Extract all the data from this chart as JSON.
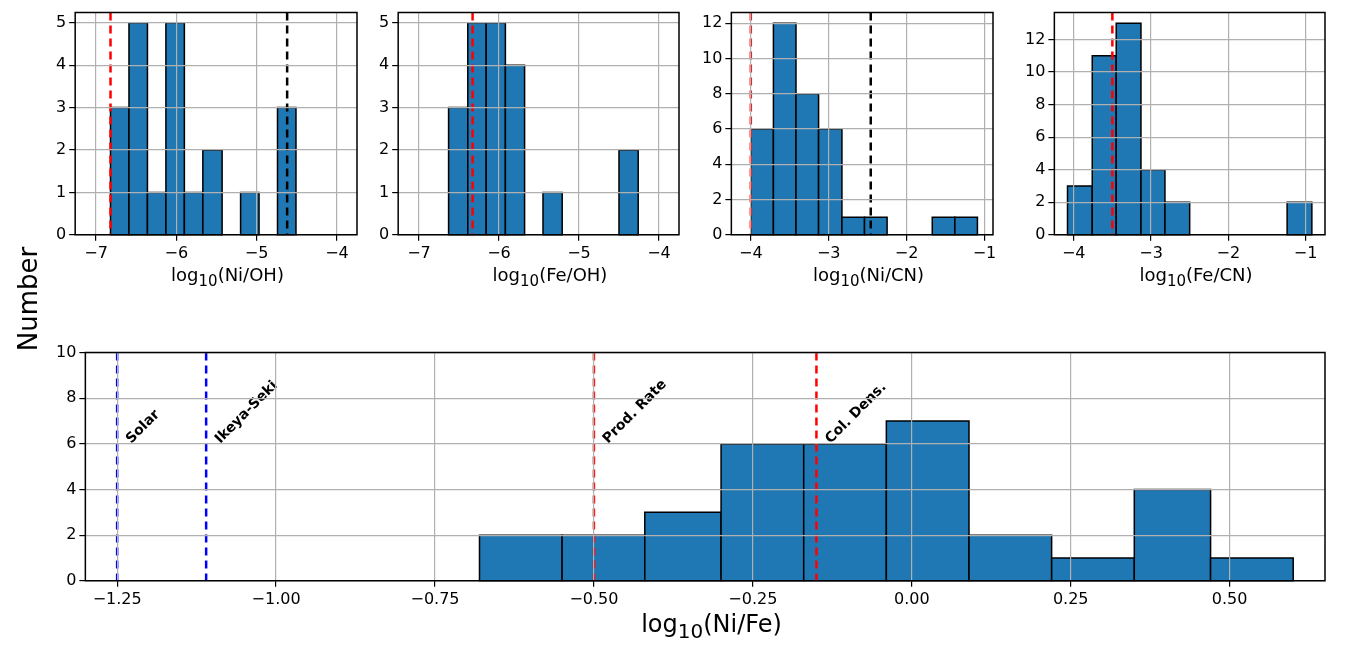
{
  "chart_data": [
    {
      "type": "histogram",
      "xlabel": "log$_{10}$(Ni/OH)",
      "bins": [
        -6.82,
        -6.59,
        -6.36,
        -6.13,
        -5.9,
        -5.67,
        -5.43,
        -5.2,
        -4.97,
        -4.74,
        -4.51
      ],
      "values": [
        3,
        5,
        1,
        5,
        1,
        2,
        0,
        1,
        0,
        3
      ],
      "color": "#1f77b4",
      "xlim": [
        -7.26,
        -3.75
      ],
      "ylim": [
        0,
        5.24
      ],
      "xticks": [
        -7,
        -6,
        -5,
        -4
      ],
      "yticks": [
        0,
        1,
        2,
        3,
        4,
        5
      ],
      "grid": true,
      "legend": false,
      "ref_lines": [
        {
          "axis": "x",
          "value": -6.82,
          "color": "#ff0000",
          "line_style": "dashed"
        },
        {
          "axis": "x",
          "value": -4.62,
          "color": "#000000",
          "line_style": "dashed"
        }
      ]
    },
    {
      "type": "histogram",
      "xlabel": "log$_{10}$(Fe/OH)",
      "bins": [
        -6.63,
        -6.39,
        -6.16,
        -5.92,
        -5.68,
        -5.45,
        -5.21,
        -4.5,
        -4.26
      ],
      "values": [
        3,
        5,
        5,
        4,
        0,
        1,
        0,
        2
      ],
      "color": "#1f77b4",
      "xlim": [
        -7.26,
        -3.75
      ],
      "ylim": [
        0,
        5.24
      ],
      "xticks": [
        -7,
        -6,
        -5,
        -4
      ],
      "yticks": [
        0,
        1,
        2,
        3,
        4,
        5
      ],
      "grid": true,
      "legend": false,
      "ref_lines": [
        {
          "axis": "x",
          "value": -6.33,
          "color": "#ff0000",
          "line_style": "dashed"
        }
      ]
    },
    {
      "type": "histogram",
      "xlabel": "log$_{10}$(Ni/CN)",
      "bins": [
        -4.0,
        -3.71,
        -3.42,
        -3.13,
        -2.83,
        -2.54,
        -2.25,
        -1.67,
        -1.38,
        -1.09
      ],
      "values": [
        6,
        12,
        8,
        6,
        1,
        1,
        0,
        1,
        1
      ],
      "color": "#1f77b4",
      "xlim": [
        -4.25,
        -0.89
      ],
      "ylim": [
        0,
        12.6
      ],
      "xticks": [
        -4,
        -3,
        -2,
        -1
      ],
      "yticks": [
        0,
        2,
        4,
        6,
        8,
        10,
        12
      ],
      "grid": true,
      "legend": false,
      "ref_lines": [
        {
          "axis": "x",
          "value": -4.0,
          "color": "#ff0000",
          "line_style": "dashed"
        },
        {
          "axis": "x",
          "value": -2.46,
          "color": "#000000",
          "line_style": "dashed"
        }
      ]
    },
    {
      "type": "histogram",
      "xlabel": "log$_{10}$(Fe/CN)",
      "bins": [
        -4.08,
        -3.76,
        -3.45,
        -3.13,
        -2.82,
        -2.5,
        -1.24,
        -0.92
      ],
      "values": [
        3,
        11,
        13,
        4,
        2,
        0,
        2
      ],
      "color": "#1f77b4",
      "xlim": [
        -4.25,
        -0.75
      ],
      "ylim": [
        0,
        13.65
      ],
      "xticks": [
        -4,
        -3,
        -2,
        -1
      ],
      "yticks": [
        0,
        2,
        4,
        6,
        8,
        10,
        12
      ],
      "grid": true,
      "legend": false,
      "ref_lines": [
        {
          "axis": "x",
          "value": -3.5,
          "color": "#ff0000",
          "line_style": "dashed"
        }
      ]
    },
    {
      "type": "histogram",
      "xlabel": "log$_{10}$(Ni/Fe)",
      "ylabel": "Number",
      "bins": [
        -0.68,
        -0.55,
        -0.42,
        -0.3,
        -0.17,
        -0.04,
        0.09,
        0.22,
        0.35,
        0.47,
        0.6
      ],
      "values": [
        2,
        2,
        3,
        6,
        6,
        7,
        2,
        1,
        4,
        1
      ],
      "color": "#1f77b4",
      "xlim": [
        -1.3,
        0.65
      ],
      "ylim": [
        0,
        10
      ],
      "xticks": [
        {
          "value": -1.25,
          "label": "−1.25"
        },
        {
          "value": -1.0,
          "label": "−1.00"
        },
        {
          "value": -0.75,
          "label": "−0.75"
        },
        {
          "value": -0.5,
          "label": "−0.50"
        },
        {
          "value": -0.25,
          "label": "−0.25"
        },
        {
          "value": 0,
          "label": "0.00"
        },
        {
          "value": 0.25,
          "label": "0.25"
        },
        {
          "value": 0.5,
          "label": "0.50"
        }
      ],
      "yticks": [
        0,
        2,
        4,
        6,
        8,
        10
      ],
      "grid": true,
      "legend": false,
      "ref_lines": [
        {
          "axis": "x",
          "value": -1.25,
          "label": "Solar",
          "color": "#0000ff",
          "line_style": "dashed"
        },
        {
          "axis": "x",
          "value": -1.11,
          "label": "Ikeya-Seki",
          "color": "#0000ff",
          "line_style": "dashed"
        },
        {
          "axis": "x",
          "value": -0.5,
          "label": "Prod. Rate",
          "color": "#ff0000",
          "line_style": "dashed"
        },
        {
          "axis": "x",
          "value": -0.15,
          "label": "Col. Dens.",
          "color": "#ff0000",
          "line_style": "dashed"
        }
      ]
    }
  ]
}
